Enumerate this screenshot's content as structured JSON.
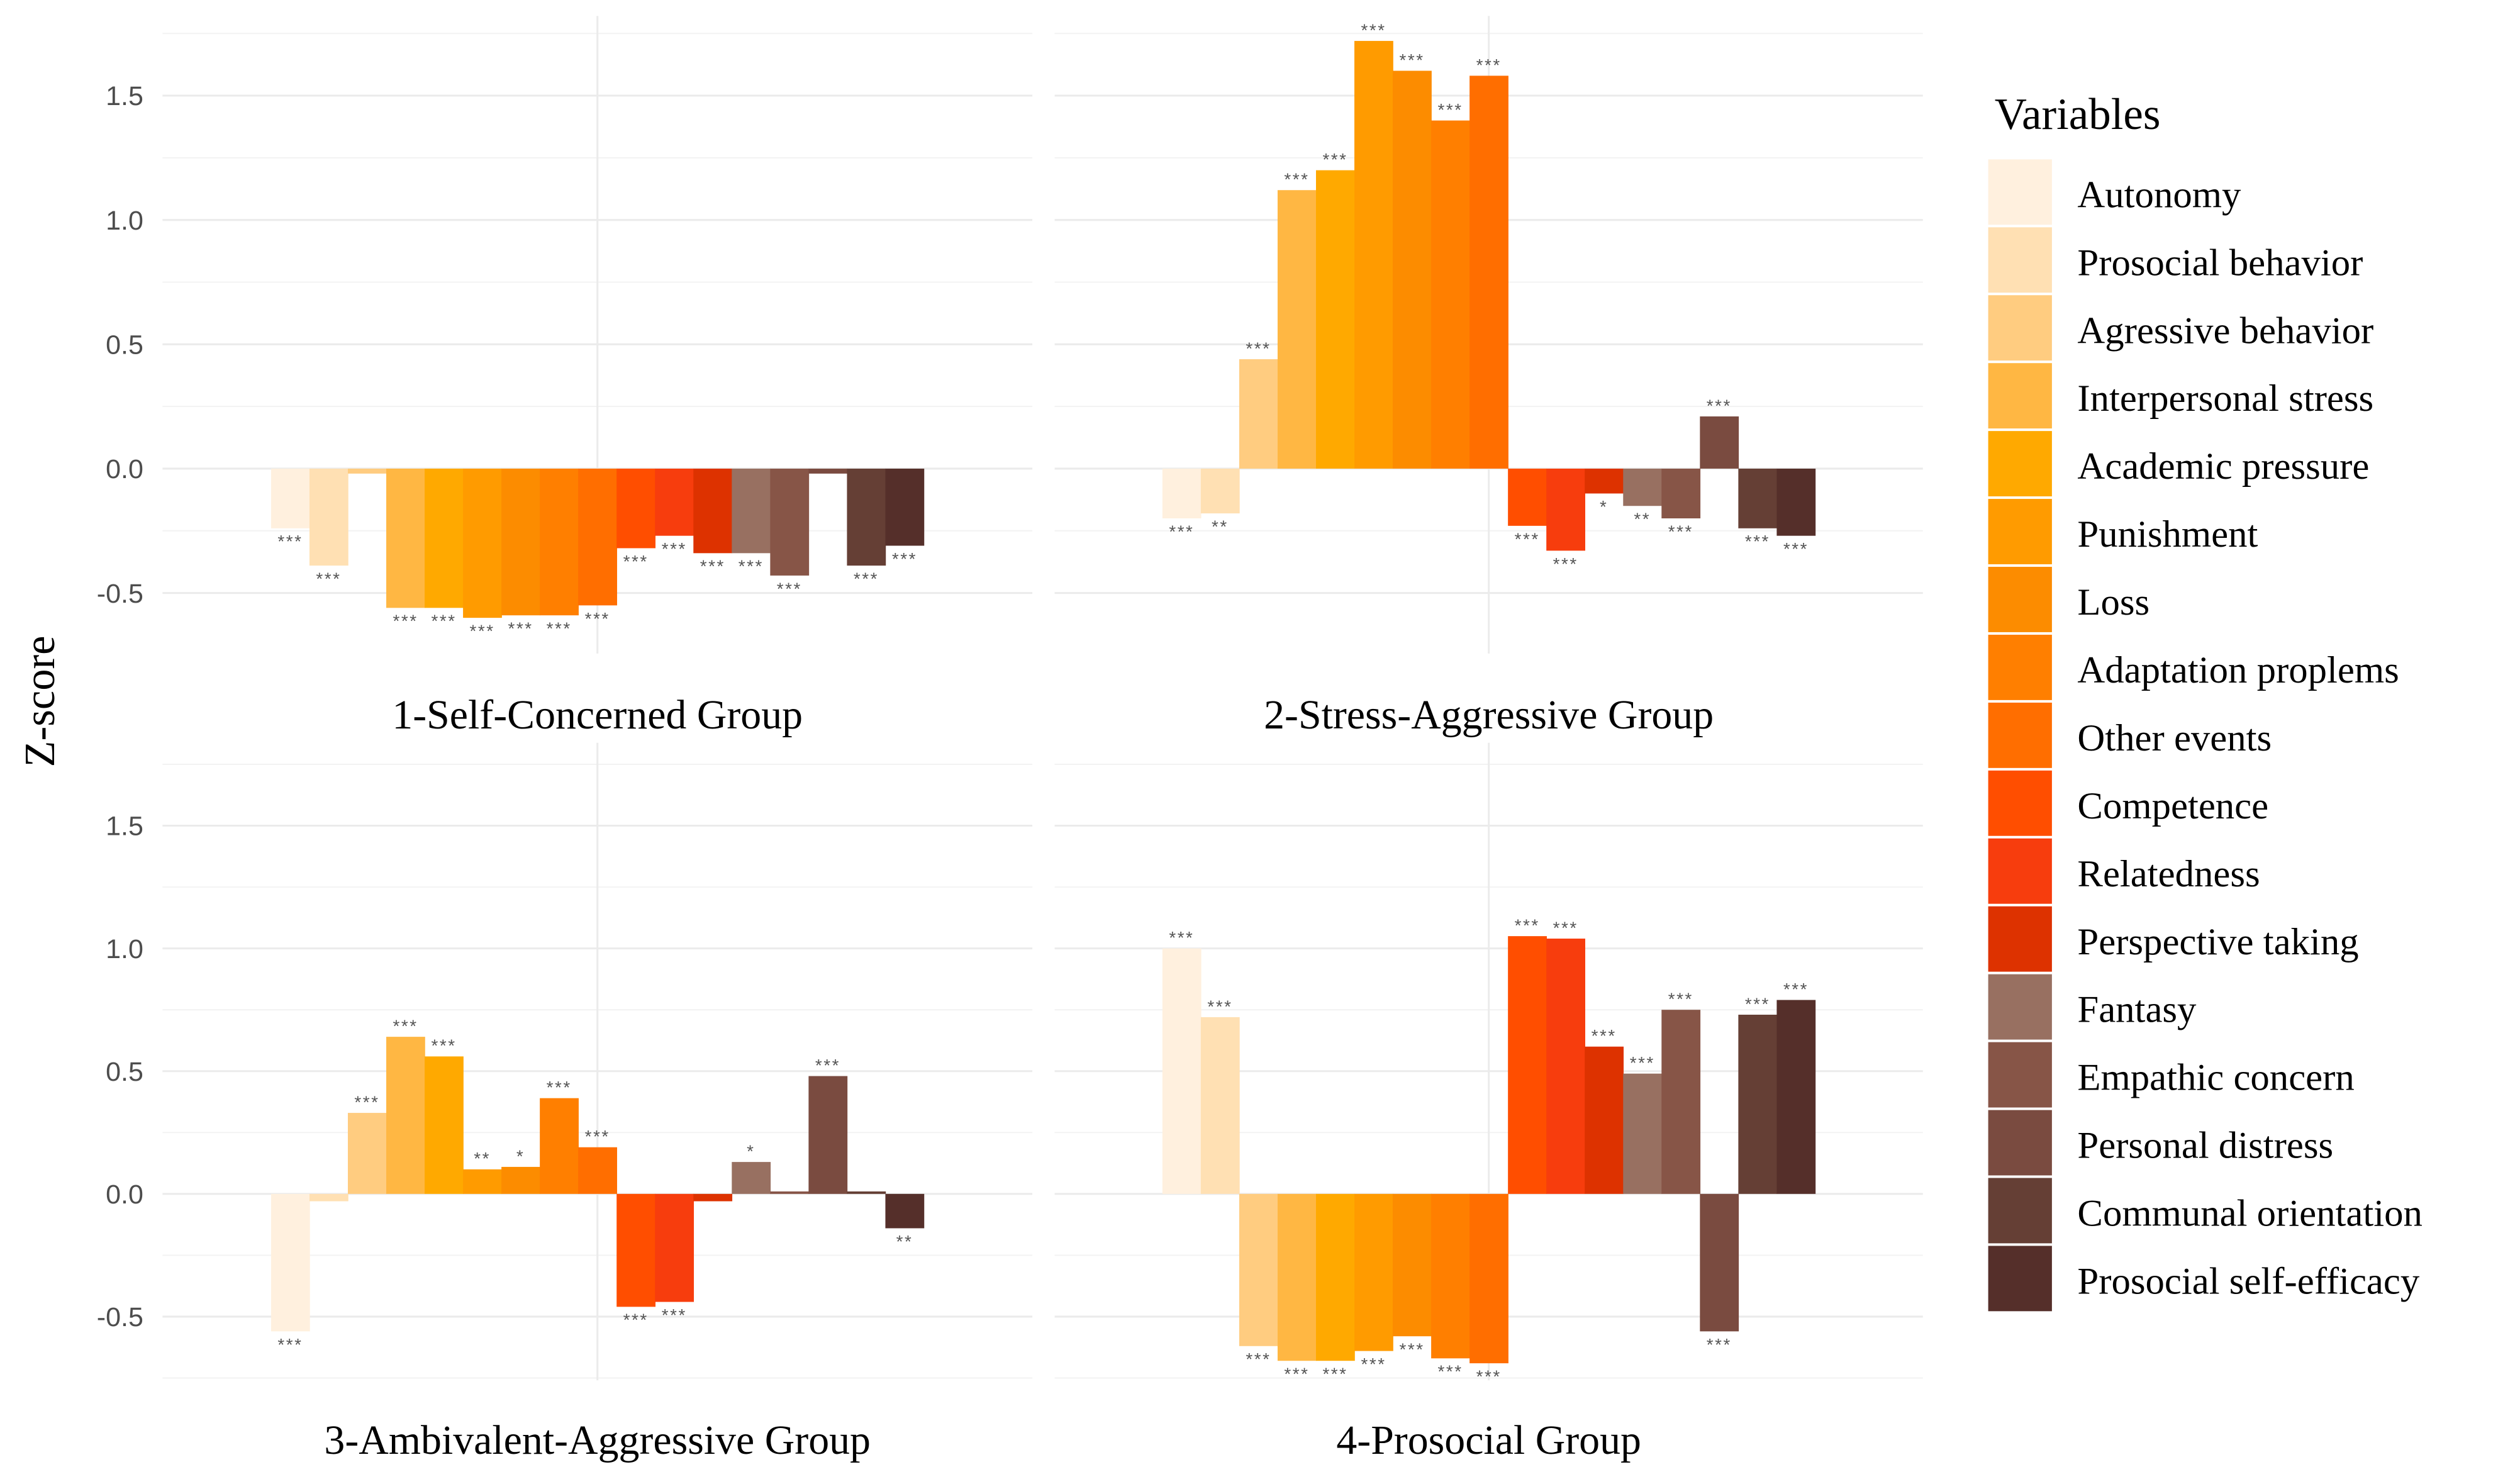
{
  "chart_data": {
    "type": "bar",
    "ylabel": "Z-score",
    "xlabel": "",
    "ylim": [
      -0.75,
      1.8
    ],
    "yticks": [
      "-0.5",
      "0.0",
      "0.5",
      "1.0",
      "1.5"
    ],
    "ytick_values": [
      -0.5,
      0.0,
      0.5,
      1.0,
      1.5
    ],
    "grid": true,
    "legend": {
      "title": "Variables",
      "placement": "right",
      "labels": [
        "Autonomy",
        "Prosocial behavior",
        "Agressive behavior",
        "Interpersonal stress",
        "Academic pressure",
        "Punishment",
        "Loss",
        "Adaptation proplems",
        "Other events",
        "Competence",
        "Relatedness",
        "Perspective taking",
        "Fantasy",
        "Empathic concern",
        "Personal distress",
        "Communal orientation",
        "Prosocial self-efficacy"
      ],
      "colors": [
        "#FFF0DE",
        "#FFE0B3",
        "#FFCC80",
        "#FFB743",
        "#FFA900",
        "#FF9B00",
        "#FC8C00",
        "#FF7F00",
        "#FF6E00",
        "#FF4E00",
        "#F73D0D",
        "#DD3200",
        "#987061",
        "#875547",
        "#7A4B40",
        "#653F35",
        "#552F2A"
      ]
    },
    "panels": [
      {
        "title": "1-Self-Concerned Group",
        "values": [
          -0.24,
          -0.39,
          -0.02,
          -0.56,
          -0.56,
          -0.6,
          -0.59,
          -0.59,
          -0.55,
          -0.32,
          -0.27,
          -0.34,
          -0.34,
          -0.43,
          -0.02,
          -0.39,
          -0.31
        ],
        "sig": [
          "***",
          "***",
          "",
          "***",
          "***",
          "***",
          "***",
          "***",
          "***",
          "***",
          "***",
          "***",
          "***",
          "***",
          "",
          "***",
          "***"
        ]
      },
      {
        "title": "2-Stress-Aggressive Group",
        "values": [
          -0.2,
          -0.18,
          0.44,
          1.12,
          1.2,
          1.72,
          1.6,
          1.4,
          1.58,
          -0.23,
          -0.33,
          -0.1,
          -0.15,
          -0.2,
          0.21,
          -0.24,
          -0.27
        ],
        "sig": [
          "***",
          "**",
          "***",
          "***",
          "***",
          "***",
          "***",
          "***",
          "***",
          "***",
          "***",
          "*",
          "**",
          "***",
          "***",
          "***",
          "***"
        ]
      },
      {
        "title": "3-Ambivalent-Aggressive Group",
        "values": [
          -0.56,
          -0.03,
          0.33,
          0.64,
          0.56,
          0.1,
          0.11,
          0.39,
          0.19,
          -0.46,
          -0.44,
          -0.03,
          0.13,
          0.01,
          0.48,
          0.01,
          -0.14
        ],
        "sig": [
          "***",
          "",
          "***",
          "***",
          "***",
          "**",
          "*",
          "***",
          "***",
          "***",
          "***",
          "",
          "*",
          "",
          "***",
          "",
          "**"
        ]
      },
      {
        "title": "4-Prosocial Group",
        "values": [
          1.0,
          0.72,
          -0.62,
          -0.68,
          -0.68,
          -0.64,
          -0.58,
          -0.67,
          -0.69,
          1.05,
          1.04,
          0.6,
          0.49,
          0.75,
          -0.56,
          0.73,
          0.79
        ],
        "sig": [
          "***",
          "***",
          "***",
          "***",
          "***",
          "***",
          "***",
          "***",
          "***",
          "***",
          "***",
          "***",
          "***",
          "***",
          "***",
          "***",
          "***"
        ]
      }
    ]
  }
}
